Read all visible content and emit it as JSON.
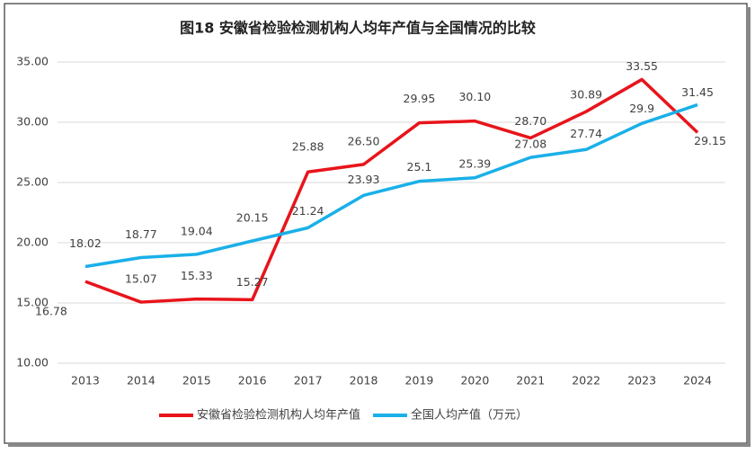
{
  "chart_data": {
    "type": "line",
    "title": "图18  安徽省检验检测机构人均年产值与全国情况的比较",
    "categories": [
      "2013",
      "2014",
      "2015",
      "2016",
      "2017",
      "2018",
      "2019",
      "2020",
      "2021",
      "2022",
      "2023",
      "2024"
    ],
    "series": [
      {
        "name": "安徽省检验检测机构人均年产值",
        "color": "#e8141b",
        "values": [
          16.78,
          15.07,
          15.33,
          15.27,
          25.88,
          26.5,
          29.95,
          30.1,
          28.7,
          30.89,
          33.55,
          29.15
        ],
        "value_labels": [
          "16.78",
          "15.07",
          "15.33",
          "15.27",
          "25.88",
          "26.50",
          "29.95",
          "30.10",
          "28.70",
          "30.89",
          "33.55",
          "29.15"
        ]
      },
      {
        "name": "全国人均产值（万元）",
        "color": "#1ab0e8",
        "values": [
          18.02,
          18.77,
          19.04,
          20.15,
          21.24,
          23.93,
          25.1,
          25.39,
          27.08,
          27.74,
          29.9,
          31.45
        ]
      }
    ],
    "ylim": [
      10,
      35
    ],
    "yticks": [
      {
        "value": 10,
        "label": "10.00"
      },
      {
        "value": 15,
        "label": "15.00"
      },
      {
        "value": 20,
        "label": "20.00"
      },
      {
        "value": 25,
        "label": "25.00"
      },
      {
        "value": 30,
        "label": "30.00"
      },
      {
        "value": 35,
        "label": "35.00"
      }
    ],
    "grid": true,
    "legend": "bottom"
  }
}
